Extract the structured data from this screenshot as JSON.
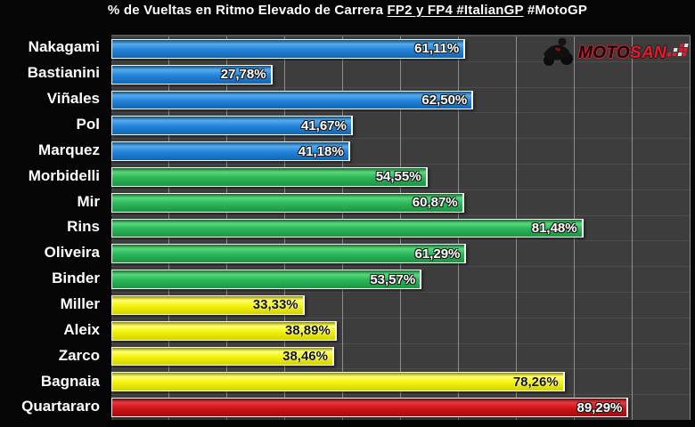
{
  "title": {
    "pre": "% de Vueltas en Ritmo Elevado de Carrera ",
    "underline": "FP2 y FP4 #ItalianGP",
    "post": " #MotoGP"
  },
  "logo": {
    "moto": "MOTO",
    "san": "SAN",
    "icons": [
      "motorcycle-rider-icon",
      "checkered-flag-icon"
    ]
  },
  "chart_data": {
    "type": "bar",
    "orientation": "horizontal",
    "title": "% de Vueltas en Ritmo Elevado de Carrera FP2 y FP4 #ItalianGP #MotoGP",
    "xlabel": "",
    "ylabel": "",
    "xlim": [
      0,
      100
    ],
    "grid": "vertical",
    "grid_interval_pct": 10,
    "categories": [
      "Nakagami",
      "Bastianini",
      "Viñales",
      "Pol",
      "Marquez",
      "Morbidelli",
      "Mir",
      "Rins",
      "Oliveira",
      "Binder",
      "Miller",
      "Aleix",
      "Zarco",
      "Bagnaia",
      "Quartararo"
    ],
    "values": [
      61.11,
      27.78,
      62.5,
      41.67,
      41.18,
      54.55,
      60.87,
      81.48,
      61.29,
      53.57,
      33.33,
      38.89,
      38.46,
      78.26,
      89.29
    ],
    "value_labels": [
      "61,11%",
      "27,78%",
      "62,50%",
      "41,67%",
      "41,18%",
      "54,55%",
      "60,87%",
      "81,48%",
      "61,29%",
      "53,57%",
      "33,33%",
      "38,89%",
      "38,46%",
      "78,26%",
      "89,29%"
    ],
    "groups": [
      "blue",
      "blue",
      "blue",
      "blue",
      "blue",
      "green",
      "green",
      "green",
      "green",
      "green",
      "yellow",
      "yellow",
      "yellow",
      "yellow",
      "red"
    ],
    "group_colors": {
      "blue": "#2283dc",
      "green": "#2ab558",
      "yellow": "#f2f20c",
      "red": "#cf1318"
    },
    "background": "#050505",
    "plot_background": "#3d3d3d",
    "gridline_color": "#c3c3c3",
    "label_color": "#ffffff"
  }
}
